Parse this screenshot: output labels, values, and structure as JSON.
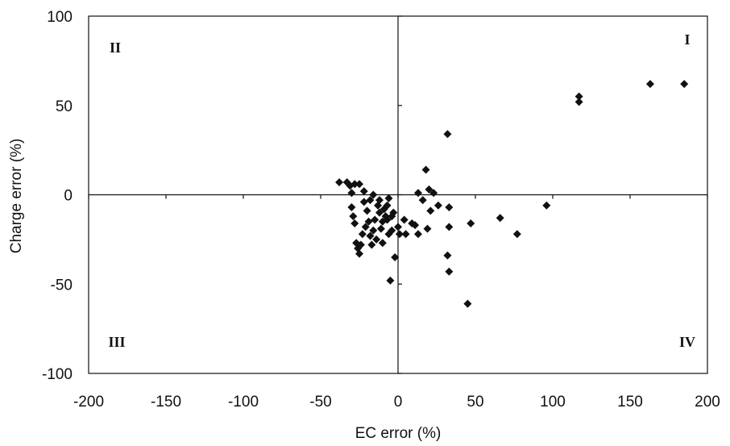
{
  "chart_data": {
    "type": "scatter",
    "xlabel": "EC error (%)",
    "ylabel": "Charge error (%)",
    "xlim": [
      -200,
      200
    ],
    "ylim": [
      -100,
      100
    ],
    "x_ticks": [
      "-200",
      "-150",
      "-100",
      "-50",
      "0",
      "50",
      "100",
      "150",
      "200"
    ],
    "y_ticks": [
      "100",
      "50",
      "0",
      "-50",
      "-100"
    ],
    "quadrant_labels": {
      "I": "I",
      "II": "II",
      "III": "III",
      "IV": "IV"
    },
    "grid": false,
    "marker_color": "#111111",
    "points": [
      {
        "x": 185,
        "y": 62
      },
      {
        "x": 163,
        "y": 62
      },
      {
        "x": 117,
        "y": 55
      },
      {
        "x": 117,
        "y": 52
      },
      {
        "x": 32,
        "y": 34
      },
      {
        "x": 18,
        "y": 14
      },
      {
        "x": 96,
        "y": -6
      },
      {
        "x": 66,
        "y": -13
      },
      {
        "x": 77,
        "y": -22
      },
      {
        "x": 47,
        "y": -16
      },
      {
        "x": 45,
        "y": -61
      },
      {
        "x": 33,
        "y": -7
      },
      {
        "x": 33,
        "y": -18
      },
      {
        "x": 32,
        "y": -34
      },
      {
        "x": 33,
        "y": -43
      },
      {
        "x": 26,
        "y": -6
      },
      {
        "x": 21,
        "y": -9
      },
      {
        "x": 19,
        "y": -19
      },
      {
        "x": 20,
        "y": 3
      },
      {
        "x": 23,
        "y": 1
      },
      {
        "x": 13,
        "y": 1
      },
      {
        "x": 16,
        "y": -3
      },
      {
        "x": 11,
        "y": -17
      },
      {
        "x": 13,
        "y": -22
      },
      {
        "x": 9,
        "y": -16
      },
      {
        "x": 4,
        "y": -14
      },
      {
        "x": 5,
        "y": -22
      },
      {
        "x": 1,
        "y": -22
      },
      {
        "x": 0,
        "y": -18
      },
      {
        "x": -2,
        "y": -35
      },
      {
        "x": -5,
        "y": -48
      },
      {
        "x": -3,
        "y": -10
      },
      {
        "x": -4,
        "y": -20
      },
      {
        "x": -6,
        "y": -22
      },
      {
        "x": -6,
        "y": -2
      },
      {
        "x": -7,
        "y": -6
      },
      {
        "x": -8,
        "y": -12
      },
      {
        "x": -9,
        "y": -8
      },
      {
        "x": -10,
        "y": -15
      },
      {
        "x": -11,
        "y": -19
      },
      {
        "x": -12,
        "y": -10
      },
      {
        "x": -13,
        "y": -6
      },
      {
        "x": -14,
        "y": -25
      },
      {
        "x": -15,
        "y": -14
      },
      {
        "x": -16,
        "y": -20
      },
      {
        "x": -17,
        "y": -28
      },
      {
        "x": -18,
        "y": -23
      },
      {
        "x": -19,
        "y": -15
      },
      {
        "x": -20,
        "y": -9
      },
      {
        "x": -21,
        "y": -18
      },
      {
        "x": -23,
        "y": -22
      },
      {
        "x": -24,
        "y": -28
      },
      {
        "x": -25,
        "y": -33
      },
      {
        "x": -26,
        "y": -30
      },
      {
        "x": -27,
        "y": -27
      },
      {
        "x": -28,
        "y": -16
      },
      {
        "x": -29,
        "y": -12
      },
      {
        "x": -30,
        "y": -7
      },
      {
        "x": -30,
        "y": 1
      },
      {
        "x": -31,
        "y": 5
      },
      {
        "x": -28,
        "y": 6
      },
      {
        "x": -25,
        "y": 6
      },
      {
        "x": -22,
        "y": 2
      },
      {
        "x": -33,
        "y": 7
      },
      {
        "x": -38,
        "y": 7
      },
      {
        "x": -16,
        "y": 0
      },
      {
        "x": -12,
        "y": -3
      },
      {
        "x": -7,
        "y": -14
      },
      {
        "x": -4,
        "y": -12
      },
      {
        "x": -10,
        "y": -27
      },
      {
        "x": -18,
        "y": -3
      },
      {
        "x": -22,
        "y": -4
      }
    ]
  }
}
